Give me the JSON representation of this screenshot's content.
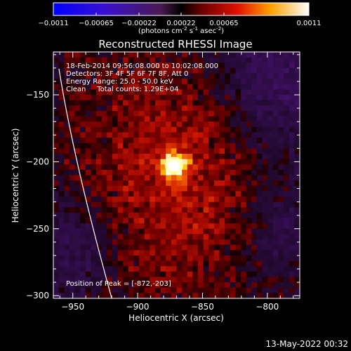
{
  "colorbar": {
    "ticks": [
      "-0.0011",
      "-0.00065",
      "-0.00022",
      "0.00022",
      "0.00065",
      "0.0011"
    ],
    "units_main": "(photons cm",
    "units_sup1": "-2",
    "units_mid1": " s",
    "units_sup2": "-1",
    "units_mid2": " asec",
    "units_sup3": "-2",
    "units_end": ")"
  },
  "chart_data": {
    "type": "heatmap",
    "title": "Reconstructed RHESSI Image",
    "xlabel": "Heliocentric X (arcsec)",
    "ylabel": "Heliocentric Y (arcsec)",
    "xlim": [
      -965,
      -775
    ],
    "ylim": [
      -302,
      -118
    ],
    "xticks": [
      -950,
      -900,
      -850,
      -800
    ],
    "yticks": [
      -150,
      -200,
      -250,
      -300
    ],
    "xtick_labels": [
      "−950",
      "−900",
      "−850",
      "−800"
    ],
    "ytick_labels": [
      "−150",
      "−200",
      "−250",
      "−300"
    ],
    "zlim": [
      -0.0011,
      0.0011
    ],
    "colormap": "rhessi-blue-red-yellow-white",
    "peak": {
      "x": -872,
      "y": -203
    },
    "info_lines": [
      "18-Feb-2014 09:56:08.000  to  10:02:08.000",
      "Detectors: 3F 4F 5F 6F 7F 8F, Att 0",
      "Energy Range: 25.0 - 50.0 keV",
      "Clean     Total counts: 1.29E+04"
    ],
    "peak_label": "Position of Peak = [-872,-203]"
  },
  "footer": {
    "timestamp": "13-May-2022 00:32"
  }
}
